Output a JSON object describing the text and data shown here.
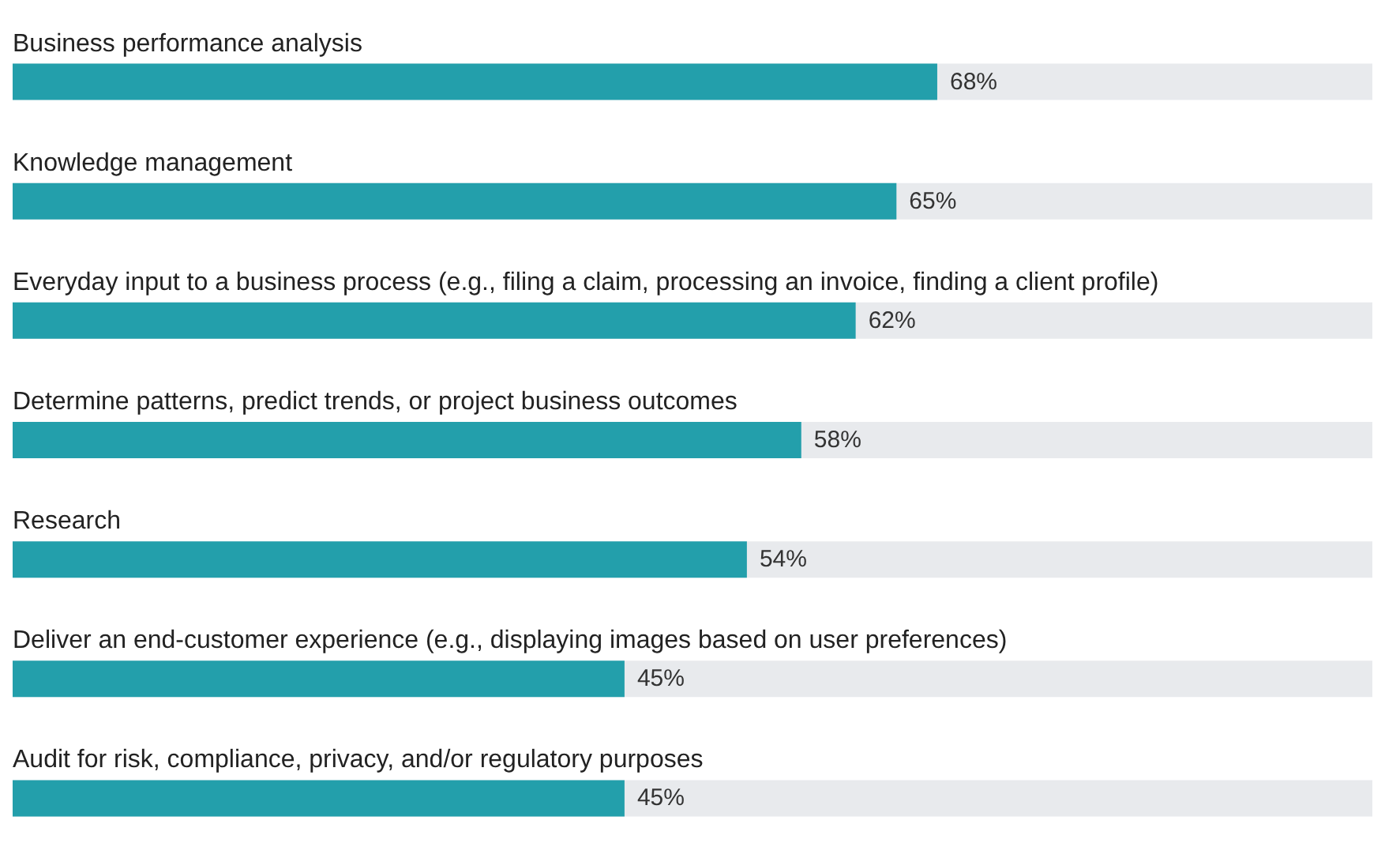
{
  "chart_data": {
    "type": "bar",
    "orientation": "horizontal",
    "categories": [
      "Business performance analysis",
      "Knowledge management",
      "Everyday input to a business process (e.g., filing a claim, processing an invoice, finding a client profile)",
      "Determine patterns, predict trends, or project business outcomes",
      "Research",
      "Deliver an end-customer experience (e.g., displaying images based on user preferences)",
      "Audit for risk, compliance, privacy, and/or regulatory purposes"
    ],
    "values": [
      68,
      65,
      62,
      58,
      54,
      45,
      45
    ],
    "color": "#239fab",
    "xlim": [
      0,
      100
    ],
    "value_labels": [
      "68%",
      "65%",
      "62%",
      "58%",
      "54%",
      "45%",
      "45%"
    ],
    "tick_labels": "y"
  }
}
